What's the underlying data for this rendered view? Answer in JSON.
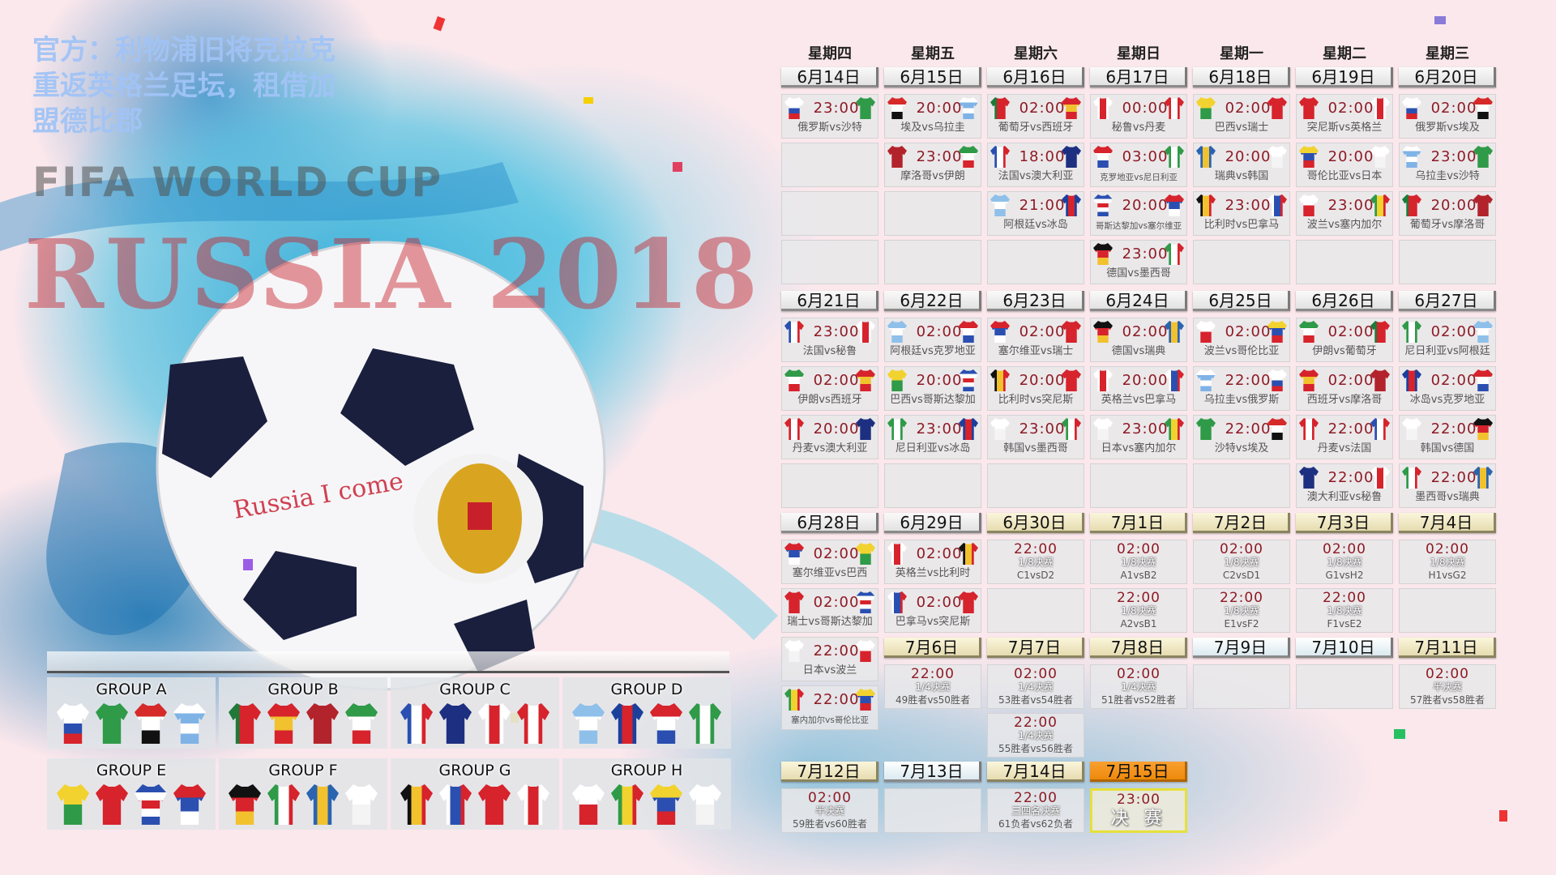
{
  "background_text": {
    "fifa": "FIFA WORLD CUP",
    "russia": "RUSSIA 2018",
    "ball_text": "Russia I come"
  },
  "watermark": "官方：利物浦旧将克拉克重返英格兰足坛，租借加盟德比郡",
  "vs_label": "vs",
  "colors": {
    "time": "#8e1b24",
    "final_header": "#f39010",
    "knockout_header": "#efe6c0",
    "final_border": "#e6e03a"
  },
  "team_kits": {
    "俄罗斯": [
      "to bottom",
      "#ffffff",
      "#ffffff",
      "#2a4fb0",
      "#d6232c"
    ],
    "沙特": [
      "to bottom",
      "#2f9a48",
      "#2f9a48"
    ],
    "埃及": [
      "to bottom",
      "#d62a2a",
      "#ffffff",
      "#111111"
    ],
    "乌拉圭": [
      "to bottom",
      "#ffffff",
      "#7fb3e6",
      "#ffffff",
      "#7fb3e6"
    ],
    "葡萄牙": [
      "to right",
      "#1f7a3a",
      "#d6232c",
      "#d6232c"
    ],
    "西班牙": [
      "to bottom",
      "#d6232c",
      "#f2c12e",
      "#d6232c"
    ],
    "摩洛哥": [
      "to bottom",
      "#b3232b",
      "#b3232b"
    ],
    "伊朗": [
      "to bottom",
      "#2f9a48",
      "#ffffff",
      "#d6232c"
    ],
    "法国": [
      "to right",
      "#2a4fb0",
      "#ffffff",
      "#d6232c"
    ],
    "澳大利亚": [
      "to bottom",
      "#1d2f80",
      "#1d2f80"
    ],
    "秘鲁": [
      "to right",
      "#ffffff",
      "#d6232c",
      "#ffffff"
    ],
    "丹麦": [
      "to right",
      "#d6232c",
      "#ffffff",
      "#d6232c"
    ],
    "阿根廷": [
      "to bottom",
      "#8fc0ea",
      "#ffffff",
      "#8fc0ea"
    ],
    "冰岛": [
      "to right",
      "#1d3f9c",
      "#d6232c",
      "#1d3f9c"
    ],
    "克罗地亚": [
      "to bottom",
      "#d6232c",
      "#ffffff",
      "#2a4fb0"
    ],
    "尼日利亚": [
      "to right",
      "#2f9a48",
      "#ffffff",
      "#2f9a48"
    ],
    "巴西": [
      "to bottom",
      "#f2d22e",
      "#2f9a48"
    ],
    "瑞士": [
      "to bottom",
      "#d6232c",
      "#d6232c"
    ],
    "哥斯达黎加": [
      "to bottom",
      "#2a4fb0",
      "#ffffff",
      "#d6232c",
      "#ffffff",
      "#2a4fb0"
    ],
    "塞尔维亚": [
      "to bottom",
      "#d6232c",
      "#2a4fb0",
      "#ffffff"
    ],
    "德国": [
      "to bottom",
      "#111111",
      "#d6232c",
      "#f2c12e"
    ],
    "墨西哥": [
      "to right",
      "#2f9a48",
      "#ffffff",
      "#d6232c"
    ],
    "瑞典": [
      "to right",
      "#2a64b0",
      "#f2c12e",
      "#2a64b0"
    ],
    "韩国": [
      "to bottom",
      "#ffffff",
      "#f4f4f4"
    ],
    "比利时": [
      "to right",
      "#111111",
      "#f2c12e",
      "#d6232c"
    ],
    "巴拿马": [
      "to right",
      "#ffffff",
      "#2a4fb0",
      "#d6232c"
    ],
    "突尼斯": [
      "to bottom",
      "#d6232c",
      "#d6232c"
    ],
    "英格兰": [
      "to right",
      "#ffffff",
      "#d6232c",
      "#ffffff"
    ],
    "波兰": [
      "to bottom",
      "#ffffff",
      "#d6232c"
    ],
    "塞内加尔": [
      "to right",
      "#2f9a48",
      "#f2d22e",
      "#d6232c"
    ],
    "哥伦比亚": [
      "to bottom",
      "#f2d22e",
      "#2a4fb0",
      "#d6232c"
    ],
    "日本": [
      "to bottom",
      "#ffffff",
      "#f4f4f4"
    ]
  },
  "schedule": {
    "weekdays": [
      "星期四",
      "星期五",
      "星期六",
      "星期日",
      "星期一",
      "星期二",
      "星期三"
    ],
    "blocks": [
      {
        "days": [
          {
            "date": "6月14日",
            "style": "normal",
            "slots": [
              {
                "t": "23:00",
                "h": "俄罗斯",
                "a": "沙特"
              },
              null,
              null,
              null
            ]
          },
          {
            "date": "6月15日",
            "style": "normal",
            "slots": [
              {
                "t": "20:00",
                "h": "埃及",
                "a": "乌拉圭"
              },
              {
                "t": "23:00",
                "h": "摩洛哥",
                "a": "伊朗"
              },
              null,
              null
            ]
          },
          {
            "date": "6月16日",
            "style": "normal",
            "slots": [
              {
                "t": "02:00",
                "h": "葡萄牙",
                "a": "西班牙"
              },
              {
                "t": "18:00",
                "h": "法国",
                "a": "澳大利亚"
              },
              {
                "t": "21:00",
                "h": "阿根廷",
                "a": "冰岛"
              },
              null
            ]
          },
          {
            "date": "6月17日",
            "style": "normal",
            "slots": [
              {
                "t": "00:00",
                "h": "秘鲁",
                "a": "丹麦"
              },
              {
                "t": "03:00",
                "h": "克罗地亚",
                "a": "尼日利亚"
              },
              {
                "t": "20:00",
                "h": "哥斯达黎加",
                "a": "塞尔维亚"
              },
              {
                "t": "23:00",
                "h": "德国",
                "a": "墨西哥"
              }
            ]
          },
          {
            "date": "6月18日",
            "style": "normal",
            "slots": [
              {
                "t": "02:00",
                "h": "巴西",
                "a": "瑞士"
              },
              {
                "t": "20:00",
                "h": "瑞典",
                "a": "韩国"
              },
              {
                "t": "23:00",
                "h": "比利时",
                "a": "巴拿马"
              },
              null
            ]
          },
          {
            "date": "6月19日",
            "style": "normal",
            "slots": [
              {
                "t": "02:00",
                "h": "突尼斯",
                "a": "英格兰"
              },
              {
                "t": "20:00",
                "h": "哥伦比亚",
                "a": "日本"
              },
              {
                "t": "23:00",
                "h": "波兰",
                "a": "塞内加尔"
              },
              null
            ]
          },
          {
            "date": "6月20日",
            "style": "normal",
            "slots": [
              {
                "t": "02:00",
                "h": "俄罗斯",
                "a": "埃及"
              },
              {
                "t": "23:00",
                "h": "乌拉圭",
                "a": "沙特"
              },
              {
                "t": "20:00",
                "h": "葡萄牙",
                "a": "摩洛哥"
              },
              null
            ]
          }
        ]
      },
      {
        "days": [
          {
            "date": "6月21日",
            "style": "normal",
            "slots": [
              {
                "t": "23:00",
                "h": "法国",
                "a": "秘鲁"
              },
              {
                "t": "02:00",
                "h": "伊朗",
                "a": "西班牙"
              },
              {
                "t": "20:00",
                "h": "丹麦",
                "a": "澳大利亚"
              },
              null
            ]
          },
          {
            "date": "6月22日",
            "style": "normal",
            "slots": [
              {
                "t": "02:00",
                "h": "阿根廷",
                "a": "克罗地亚"
              },
              {
                "t": "20:00",
                "h": "巴西",
                "a": "哥斯达黎加"
              },
              {
                "t": "23:00",
                "h": "尼日利亚",
                "a": "冰岛"
              },
              null
            ]
          },
          {
            "date": "6月23日",
            "style": "normal",
            "slots": [
              {
                "t": "02:00",
                "h": "塞尔维亚",
                "a": "瑞士"
              },
              {
                "t": "20:00",
                "h": "比利时",
                "a": "突尼斯"
              },
              {
                "t": "23:00",
                "h": "韩国",
                "a": "墨西哥"
              },
              null
            ]
          },
          {
            "date": "6月24日",
            "style": "normal",
            "slots": [
              {
                "t": "02:00",
                "h": "德国",
                "a": "瑞典"
              },
              {
                "t": "20:00",
                "h": "英格兰",
                "a": "巴拿马"
              },
              {
                "t": "23:00",
                "h": "日本",
                "a": "塞内加尔"
              },
              null
            ]
          },
          {
            "date": "6月25日",
            "style": "normal",
            "slots": [
              {
                "t": "02:00",
                "h": "波兰",
                "a": "哥伦比亚"
              },
              {
                "t": "22:00",
                "h": "乌拉圭",
                "a": "俄罗斯"
              },
              {
                "t": "22:00",
                "h": "沙特",
                "a": "埃及"
              },
              null
            ]
          },
          {
            "date": "6月26日",
            "style": "normal",
            "slots": [
              {
                "t": "02:00",
                "h": "伊朗",
                "a": "葡萄牙"
              },
              {
                "t": "02:00",
                "h": "西班牙",
                "a": "摩洛哥"
              },
              {
                "t": "22:00",
                "h": "丹麦",
                "a": "法国"
              },
              {
                "t": "22:00",
                "h": "澳大利亚",
                "a": "秘鲁"
              }
            ]
          },
          {
            "date": "6月27日",
            "style": "normal",
            "slots": [
              {
                "t": "02:00",
                "h": "尼日利亚",
                "a": "阿根廷"
              },
              {
                "t": "02:00",
                "h": "冰岛",
                "a": "克罗地亚"
              },
              {
                "t": "22:00",
                "h": "韩国",
                "a": "德国"
              },
              {
                "t": "22:00",
                "h": "墨西哥",
                "a": "瑞典"
              }
            ]
          }
        ]
      },
      {
        "days": [
          {
            "date": "6月28日",
            "style": "normal",
            "slots": [
              {
                "t": "02:00",
                "h": "塞尔维亚",
                "a": "巴西"
              },
              {
                "t": "02:00",
                "h": "瑞士",
                "a": "哥斯达黎加"
              },
              {
                "t": "22:00",
                "h": "日本",
                "a": "波兰"
              },
              {
                "t": "22:00",
                "h": "塞内加尔",
                "a": "哥伦比亚"
              }
            ]
          },
          {
            "date": "6月29日",
            "style": "normal",
            "slots": [
              {
                "t": "02:00",
                "h": "英格兰",
                "a": "比利时"
              },
              {
                "t": "02:00",
                "h": "巴拿马",
                "a": "突尼斯"
              }
            ]
          },
          {
            "date": "6月30日",
            "style": "knockout",
            "slots": [
              {
                "t": "22:00",
                "stage": "1/8决赛",
                "pair": "C1vsD2"
              },
              null
            ]
          },
          {
            "date": "7月1日",
            "style": "knockout",
            "slots": [
              {
                "t": "02:00",
                "stage": "1/8决赛",
                "pair": "A1vsB2"
              },
              {
                "t": "22:00",
                "stage": "1/8决赛",
                "pair": "A2vsB1"
              }
            ]
          },
          {
            "date": "7月2日",
            "style": "knockout",
            "slots": [
              {
                "t": "02:00",
                "stage": "1/8决赛",
                "pair": "C2vsD1"
              },
              {
                "t": "22:00",
                "stage": "1/8决赛",
                "pair": "E1vsF2"
              }
            ]
          },
          {
            "date": "7月3日",
            "style": "knockout",
            "slots": [
              {
                "t": "02:00",
                "stage": "1/8决赛",
                "pair": "G1vsH2"
              },
              {
                "t": "22:00",
                "stage": "1/8决赛",
                "pair": "F1vsE2"
              }
            ]
          },
          {
            "date": "7月4日",
            "style": "knockout",
            "slots": [
              {
                "t": "02:00",
                "stage": "1/8决赛",
                "pair": "H1vsG2"
              },
              null
            ]
          }
        ]
      },
      {
        "days": [
          null,
          {
            "date": "7月6日",
            "style": "knockout",
            "slots": [
              {
                "t": "22:00",
                "stage": "1/4决赛",
                "pair": "49胜者vs50胜者"
              }
            ]
          },
          {
            "date": "7月7日",
            "style": "knockout",
            "slots": [
              {
                "t": "02:00",
                "stage": "1/4决赛",
                "pair": "53胜者vs54胜者"
              },
              {
                "t": "22:00",
                "stage": "1/4决赛",
                "pair": "55胜者vs56胜者"
              }
            ]
          },
          {
            "date": "7月8日",
            "style": "knockout",
            "slots": [
              {
                "t": "02:00",
                "stage": "1/4决赛",
                "pair": "51胜者vs52胜者"
              }
            ]
          },
          {
            "date": "7月9日",
            "style": "light",
            "slots": [
              null
            ]
          },
          {
            "date": "7月10日",
            "style": "light",
            "slots": [
              null
            ]
          },
          {
            "date": "7月11日",
            "style": "knockout",
            "slots": [
              {
                "t": "02:00",
                "stage": "半决赛",
                "pair": "57胜者vs58胜者"
              }
            ]
          }
        ]
      },
      {
        "days": [
          {
            "date": "7月12日",
            "style": "knockout",
            "slots": [
              {
                "t": "02:00",
                "stage": "半决赛",
                "pair": "59胜者vs60胜者"
              }
            ]
          },
          {
            "date": "7月13日",
            "style": "light",
            "slots": [
              null
            ]
          },
          {
            "date": "7月14日",
            "style": "knockout",
            "slots": [
              {
                "t": "22:00",
                "stage": "三四名决赛",
                "pair": "61负者vs62负者"
              }
            ]
          },
          {
            "date": "7月15日",
            "style": "final",
            "slots": [
              {
                "t": "23:00",
                "stage": "决 赛",
                "final": true
              }
            ]
          }
        ]
      }
    ]
  },
  "groups": [
    {
      "name": "GROUP A",
      "teams": [
        "俄罗斯",
        "沙特",
        "埃及",
        "乌拉圭"
      ]
    },
    {
      "name": "GROUP B",
      "teams": [
        "葡萄牙",
        "西班牙",
        "摩洛哥",
        "伊朗"
      ]
    },
    {
      "name": "GROUP C",
      "teams": [
        "法国",
        "澳大利亚",
        "秘鲁",
        "丹麦"
      ]
    },
    {
      "name": "GROUP D",
      "teams": [
        "阿根廷",
        "冰岛",
        "克罗地亚",
        "尼日利亚"
      ]
    },
    {
      "name": "GROUP E",
      "teams": [
        "巴西",
        "瑞士",
        "哥斯达黎加",
        "塞尔维亚"
      ]
    },
    {
      "name": "GROUP F",
      "teams": [
        "德国",
        "墨西哥",
        "瑞典",
        "韩国"
      ]
    },
    {
      "name": "GROUP G",
      "teams": [
        "比利时",
        "巴拿马",
        "突尼斯",
        "英格兰"
      ]
    },
    {
      "name": "GROUP H",
      "teams": [
        "波兰",
        "塞内加尔",
        "哥伦比亚",
        "日本"
      ]
    }
  ]
}
